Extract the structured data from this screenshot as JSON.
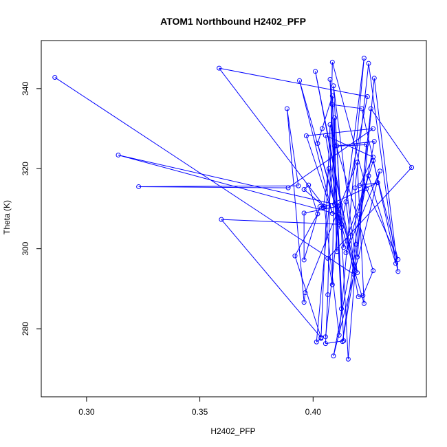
{
  "chart_data": {
    "type": "line",
    "title": "ATOM1 Northbound H2402_PFP",
    "xlabel": "H2402_PFP",
    "ylabel": "Theta (K)",
    "xlim": [
      0.28,
      0.45
    ],
    "ylim": [
      263,
      352
    ],
    "xticks": [
      0.3,
      0.35,
      0.4
    ],
    "xtick_labels": [
      "0.30",
      "0.35",
      "0.40"
    ],
    "yticks": [
      280,
      300,
      320,
      340
    ],
    "ytick_labels": [
      "280",
      "300",
      "320",
      "340"
    ],
    "grid": false,
    "legend": "none",
    "markers": "open-circle",
    "colors": {
      "series": "#0000ff",
      "axes": "#000000"
    },
    "series": [
      {
        "points": [
          [
            0.286,
            342.8
          ],
          [
            0.418,
            293.6
          ],
          [
            0.413,
            276.8
          ],
          [
            0.419,
            301.1
          ],
          [
            0.4185,
            315.2
          ],
          [
            0.4245,
            346.3
          ],
          [
            0.4365,
            296.3
          ],
          [
            0.4245,
            318.2
          ],
          [
            0.4135,
            300.3
          ],
          [
            0.412,
            311.0
          ],
          [
            0.409,
            340.7
          ],
          [
            0.4195,
            294.0
          ],
          [
            0.411,
            310.6
          ],
          [
            0.396,
            308.9
          ],
          [
            0.396,
            297.2
          ],
          [
            0.403,
            310.5
          ],
          [
            0.405,
            310.5
          ],
          [
            0.3585,
            345.1
          ],
          [
            0.424,
            338.0
          ],
          [
            0.4125,
            306.2
          ],
          [
            0.4115,
            306.1
          ],
          [
            0.3595,
            307.3
          ],
          [
            0.4035,
            277.8
          ],
          [
            0.392,
            298.2
          ],
          [
            0.402,
            308.7
          ],
          [
            0.398,
            315.9
          ],
          [
            0.396,
            314.8
          ],
          [
            0.405,
            310.5
          ],
          [
            0.4115,
            278.4
          ],
          [
            0.4225,
            347.6
          ],
          [
            0.4145,
            311.7
          ],
          [
            0.4185,
            294.3
          ],
          [
            0.401,
            344.3
          ],
          [
            0.42,
            288.0
          ],
          [
            0.422,
            288.3
          ],
          [
            0.4265,
            294.5
          ],
          [
            0.4075,
            331.0
          ],
          [
            0.4035,
            277.6
          ],
          [
            0.4015,
            276.7
          ],
          [
            0.4095,
            325.6
          ],
          [
            0.4235,
            326.0
          ],
          [
            0.4195,
            297.9
          ],
          [
            0.427,
            342.6
          ],
          [
            0.4375,
            294.3
          ],
          [
            0.4215,
            335.0
          ],
          [
            0.4085,
            336.0
          ],
          [
            0.4135,
            277.0
          ],
          [
            0.4055,
            276.3
          ],
          [
            0.4065,
            288.5
          ],
          [
            0.4085,
            346.6
          ],
          [
            0.4235,
            315.0
          ],
          [
            0.4375,
            297.3
          ],
          [
            0.4265,
            322.0
          ],
          [
            0.4145,
            299.0
          ],
          [
            0.4295,
            319.4
          ],
          [
            0.409,
            273.2
          ],
          [
            0.427,
            326.8
          ],
          [
            0.4105,
            325.7
          ],
          [
            0.4155,
            272.4
          ],
          [
            0.4205,
            308.6
          ],
          [
            0.4255,
            335.0
          ],
          [
            0.4435,
            320.3
          ],
          [
            0.4065,
            297.6
          ],
          [
            0.4085,
            291.0
          ],
          [
            0.4095,
            332.7
          ],
          [
            0.4105,
            299.3
          ],
          [
            0.4075,
            342.3
          ],
          [
            0.4125,
            285.0
          ],
          [
            0.4085,
            338.2
          ],
          [
            0.404,
            330.0
          ],
          [
            0.402,
            326.3
          ],
          [
            0.4225,
            286.3
          ],
          [
            0.4195,
            321.6
          ],
          [
            0.3965,
            289.0
          ],
          [
            0.396,
            286.6
          ],
          [
            0.3885,
            335.0
          ],
          [
            0.3935,
            315.7
          ],
          [
            0.323,
            315.5
          ],
          [
            0.389,
            315.2
          ],
          [
            0.4265,
            330.0
          ],
          [
            0.397,
            328.2
          ],
          [
            0.4085,
            308.8
          ],
          [
            0.394,
            342.0
          ],
          [
            0.4125,
            305.3
          ],
          [
            0.4055,
            328.3
          ],
          [
            0.4265,
            322.9
          ],
          [
            0.4205,
            315.8
          ],
          [
            0.4285,
            316.5
          ],
          [
            0.4045,
            310.3
          ],
          [
            0.407,
            320.0
          ],
          [
            0.4095,
            311.1
          ],
          [
            0.314,
            323.4
          ],
          [
            0.4115,
            308.5
          ],
          [
            0.4055,
            278.0
          ]
        ]
      }
    ]
  }
}
